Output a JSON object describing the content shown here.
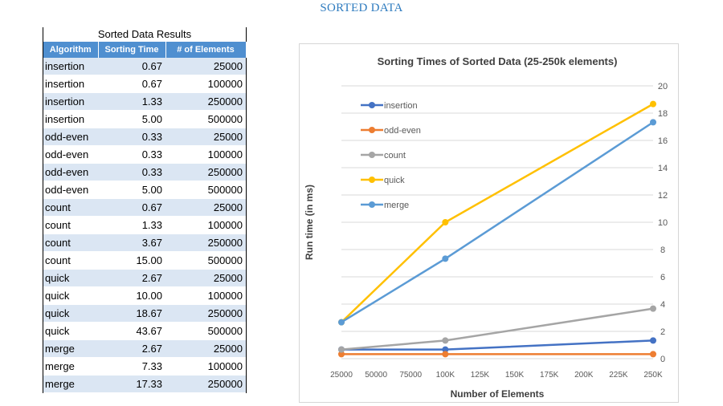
{
  "heading": "SORTED DATA",
  "table": {
    "caption": "Sorted Data Results",
    "headers": [
      "Algorithm",
      "Sorting Time",
      "# of Elements"
    ],
    "rows": [
      [
        "insertion",
        "0.67",
        "25000"
      ],
      [
        "insertion",
        "0.67",
        "100000"
      ],
      [
        "insertion",
        "1.33",
        "250000"
      ],
      [
        "insertion",
        "5.00",
        "500000"
      ],
      [
        "odd-even",
        "0.33",
        "25000"
      ],
      [
        "odd-even",
        "0.33",
        "100000"
      ],
      [
        "odd-even",
        "0.33",
        "250000"
      ],
      [
        "odd-even",
        "5.00",
        "500000"
      ],
      [
        "count",
        "0.67",
        "25000"
      ],
      [
        "count",
        "1.33",
        "100000"
      ],
      [
        "count",
        "3.67",
        "250000"
      ],
      [
        "count",
        "15.00",
        "500000"
      ],
      [
        "quick",
        "2.67",
        "25000"
      ],
      [
        "quick",
        "10.00",
        "100000"
      ],
      [
        "quick",
        "18.67",
        "250000"
      ],
      [
        "quick",
        "43.67",
        "500000"
      ],
      [
        "merge",
        "2.67",
        "25000"
      ],
      [
        "merge",
        "7.33",
        "100000"
      ],
      [
        "merge",
        "17.33",
        "250000"
      ]
    ]
  },
  "chart_data": {
    "type": "line",
    "title": "Sorting Times of Sorted Data (25-250k elements)",
    "xlabel": "Number of Elements",
    "ylabel": "Run time (in ms)",
    "x": [
      25000,
      100000,
      250000
    ],
    "x_tick_labels": [
      "25000",
      "50000",
      "75000",
      "100K",
      "125K",
      "150K",
      "175K",
      "200K",
      "225K",
      "250K"
    ],
    "x_tick_values": [
      25000,
      50000,
      75000,
      100000,
      125000,
      150000,
      175000,
      200000,
      225000,
      250000
    ],
    "xlim": [
      25000,
      250000
    ],
    "ylim": [
      0,
      20
    ],
    "y_ticks": [
      0,
      2,
      4,
      6,
      8,
      10,
      12,
      14,
      16,
      18,
      20
    ],
    "y_axis_side": "right",
    "grid": true,
    "legend_position": "top-left",
    "series": [
      {
        "name": "insertion",
        "color": "#4472c4",
        "values": [
          0.67,
          0.67,
          1.33
        ]
      },
      {
        "name": "odd-even",
        "color": "#ed7d31",
        "values": [
          0.33,
          0.33,
          0.33
        ]
      },
      {
        "name": "count",
        "color": "#a5a5a5",
        "values": [
          0.67,
          1.33,
          3.67
        ]
      },
      {
        "name": "quick",
        "color": "#ffc000",
        "values": [
          2.67,
          10.0,
          18.67
        ]
      },
      {
        "name": "merge",
        "color": "#5b9bd5",
        "values": [
          2.67,
          7.33,
          17.33
        ]
      }
    ]
  }
}
